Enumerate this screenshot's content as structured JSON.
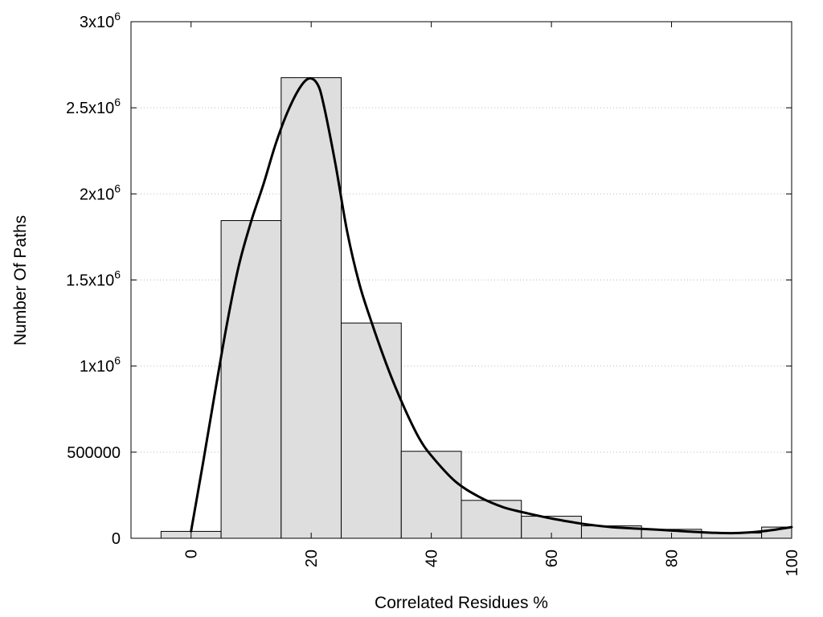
{
  "chart_data": {
    "type": "bar",
    "title": "",
    "xlabel": "Correlated Residues %",
    "ylabel": "Number Of Paths",
    "xlim": [
      -10,
      100
    ],
    "ylim": [
      0,
      3000000
    ],
    "grid": true,
    "bars": [
      {
        "center": 0,
        "width": 10,
        "value": 40000
      },
      {
        "center": 10,
        "width": 10,
        "value": 1845000
      },
      {
        "center": 20,
        "width": 10,
        "value": 2675000
      },
      {
        "center": 30,
        "width": 10,
        "value": 1250000
      },
      {
        "center": 40,
        "width": 10,
        "value": 505000
      },
      {
        "center": 50,
        "width": 10,
        "value": 220000
      },
      {
        "center": 60,
        "width": 10,
        "value": 128000
      },
      {
        "center": 70,
        "width": 10,
        "value": 72000
      },
      {
        "center": 80,
        "width": 10,
        "value": 52000
      },
      {
        "center": 90,
        "width": 10,
        "value": 30000
      },
      {
        "center": 100,
        "width": 10,
        "value": 65000
      }
    ],
    "curve": {
      "x": [
        0,
        2,
        4,
        6,
        8,
        10,
        12,
        14,
        16,
        18,
        19.6,
        21,
        22,
        24,
        26,
        28,
        30,
        32,
        34,
        36,
        38,
        40,
        44,
        48,
        52,
        56,
        60,
        65,
        70,
        75,
        80,
        85,
        90,
        95,
        100
      ],
      "y": [
        40000,
        440000,
        850000,
        1250000,
        1590000,
        1840000,
        2050000,
        2280000,
        2470000,
        2610000,
        2670000,
        2640000,
        2530000,
        2180000,
        1780000,
        1480000,
        1260000,
        1060000,
        880000,
        720000,
        580000,
        480000,
        330000,
        240000,
        180000,
        145000,
        115000,
        85000,
        65000,
        55000,
        45000,
        35000,
        30000,
        40000,
        65000
      ]
    },
    "x_ticks": [
      {
        "value": 0,
        "label": "0"
      },
      {
        "value": 20,
        "label": "20"
      },
      {
        "value": 40,
        "label": "40"
      },
      {
        "value": 60,
        "label": "60"
      },
      {
        "value": 80,
        "label": "80"
      },
      {
        "value": 100,
        "label": "100"
      }
    ],
    "y_ticks": [
      {
        "value": 0,
        "mant": "0",
        "exp": ""
      },
      {
        "value": 500000,
        "mant": "500000",
        "exp": ""
      },
      {
        "value": 1000000,
        "mant": "1x10",
        "exp": "6"
      },
      {
        "value": 1500000,
        "mant": "1.5x10",
        "exp": "6"
      },
      {
        "value": 2000000,
        "mant": "2x10",
        "exp": "6"
      },
      {
        "value": 2500000,
        "mant": "2.5x10",
        "exp": "6"
      },
      {
        "value": 3000000,
        "mant": "3x10",
        "exp": "6"
      }
    ],
    "colors": {
      "bar_fill": "#dedede",
      "bar_stroke": "#000000",
      "curve": "#000000",
      "grid": "#bbbbbb"
    }
  }
}
